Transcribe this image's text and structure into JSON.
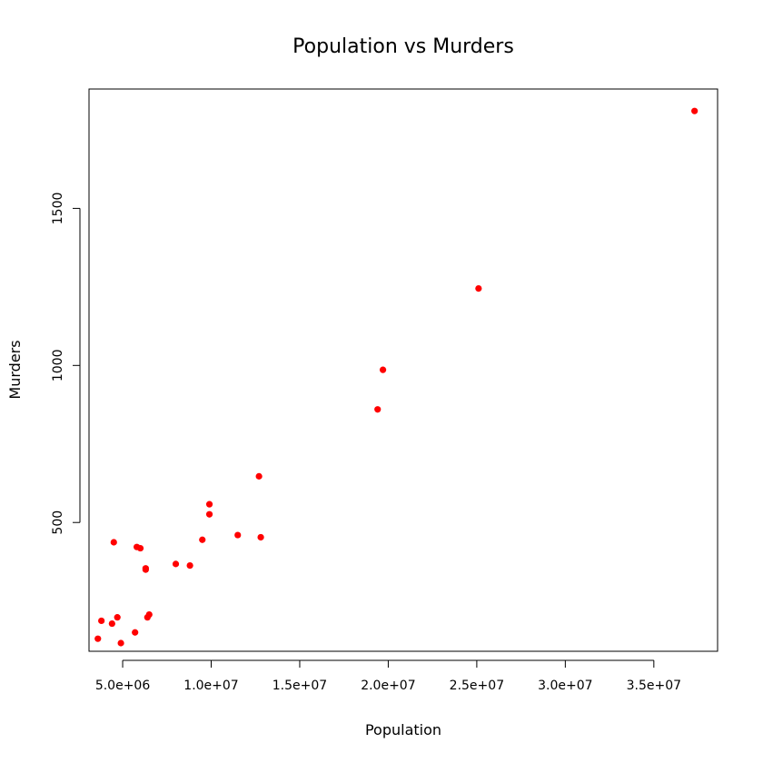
{
  "chart_data": {
    "type": "scatter",
    "title": "Population vs Murders",
    "xlabel": "Population",
    "ylabel": "Murders",
    "xlim": [
      3100000,
      38600000
    ],
    "ylim": [
      90,
      1880
    ],
    "x_ticks": [
      5000000,
      10000000,
      15000000,
      20000000,
      25000000,
      30000000,
      35000000
    ],
    "x_tick_labels": [
      "5.0e+06",
      "1.0e+07",
      "1.5e+07",
      "2.0e+07",
      "2.5e+07",
      "3.0e+07",
      "3.5e+07"
    ],
    "y_ticks": [
      500,
      1000,
      1500
    ],
    "y_tick_labels": [
      "500",
      "1000",
      "1500"
    ],
    "grid": false,
    "legend": "none",
    "point_color": "#ff0000",
    "series": [
      {
        "points": [
          {
            "x": 37300000,
            "y": 1810
          },
          {
            "x": 25100000,
            "y": 1245
          },
          {
            "x": 19700000,
            "y": 986
          },
          {
            "x": 19400000,
            "y": 860
          },
          {
            "x": 12700000,
            "y": 647
          },
          {
            "x": 12800000,
            "y": 453
          },
          {
            "x": 11500000,
            "y": 460
          },
          {
            "x": 9900000,
            "y": 558
          },
          {
            "x": 9900000,
            "y": 526
          },
          {
            "x": 9500000,
            "y": 445
          },
          {
            "x": 8800000,
            "y": 363
          },
          {
            "x": 8000000,
            "y": 368
          },
          {
            "x": 6300000,
            "y": 354
          },
          {
            "x": 6300000,
            "y": 350
          },
          {
            "x": 6000000,
            "y": 418
          },
          {
            "x": 5800000,
            "y": 422
          },
          {
            "x": 4500000,
            "y": 437
          },
          {
            "x": 6500000,
            "y": 207
          },
          {
            "x": 6400000,
            "y": 198
          },
          {
            "x": 4700000,
            "y": 198
          },
          {
            "x": 3800000,
            "y": 187
          },
          {
            "x": 4400000,
            "y": 178
          },
          {
            "x": 5700000,
            "y": 150
          },
          {
            "x": 3600000,
            "y": 130
          },
          {
            "x": 4900000,
            "y": 116
          }
        ]
      }
    ]
  }
}
